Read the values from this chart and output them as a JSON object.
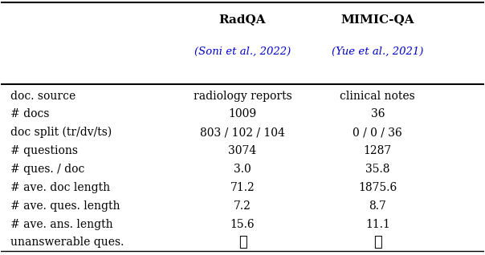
{
  "col_headers": [
    "RadQA",
    "MIMIC-QA"
  ],
  "col_subheaders": [
    "(Soni et al., 2022)",
    "(Yue et al., 2021)"
  ],
  "row_labels": [
    "doc. source",
    "# docs",
    "doc split (tr/dv/ts)",
    "# questions",
    "# ques. / doc",
    "# ave. doc length",
    "# ave. ques. length",
    "# ave. ans. length",
    "unanswerable ques."
  ],
  "col1_values": [
    "radiology reports",
    "1009",
    "803 / 102 / 104",
    "3074",
    "3.0",
    "71.2",
    "7.2",
    "15.6",
    "✓"
  ],
  "col2_values": [
    "clinical notes",
    "36",
    "0 / 0 / 36",
    "1287",
    "35.8",
    "1875.6",
    "8.7",
    "11.1",
    "✗"
  ],
  "header_color": "#000000",
  "subheader_color": "#0000cc",
  "body_color": "#000000",
  "bg_color": "#ffffff",
  "line_color": "#000000",
  "figsize": [
    6.04,
    3.18
  ],
  "dpi": 100
}
